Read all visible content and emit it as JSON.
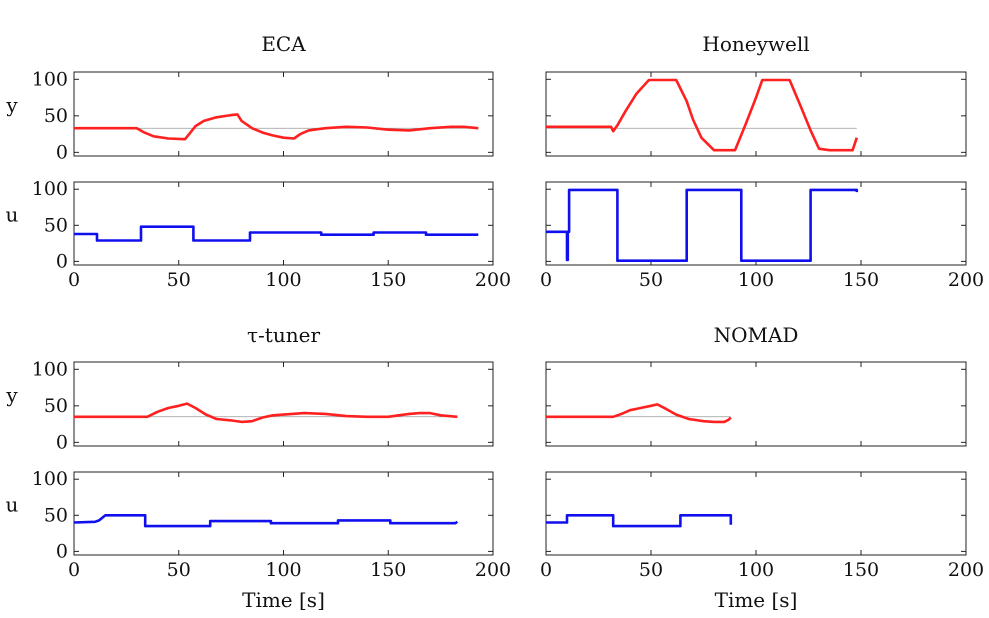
{
  "chart_data": [
    {
      "type": "line",
      "title": "ECA",
      "xlabel": "",
      "xlim": [
        0,
        200
      ],
      "xticks": [
        "0",
        "50",
        "100",
        "150",
        "200"
      ],
      "subplots": [
        {
          "ylabel": "y",
          "ylim": [
            -5,
            110
          ],
          "yticks": [
            "0",
            "50",
            "100"
          ],
          "setpoint": 33,
          "series": [
            {
              "color": "#ff2020",
              "x": [
                0,
                30,
                33,
                38,
                45,
                53,
                55,
                58,
                62,
                68,
                75,
                78,
                80,
                85,
                90,
                95,
                100,
                105,
                108,
                112,
                120,
                130,
                140,
                150,
                160,
                170,
                180,
                186,
                193
              ],
              "y": [
                33,
                33,
                28,
                22,
                19,
                18,
                25,
                36,
                43,
                48,
                51,
                52,
                43,
                33,
                27,
                23,
                20,
                19,
                25,
                30,
                33,
                35,
                34,
                31,
                30,
                33,
                35,
                35,
                33
              ]
            }
          ]
        },
        {
          "ylabel": "u",
          "ylim": [
            -5,
            110
          ],
          "yticks": [
            "0",
            "50",
            "100"
          ],
          "series": [
            {
              "color": "#1010ee",
              "x": [
                0,
                11,
                11,
                32,
                32,
                57,
                57,
                84,
                84,
                118,
                118,
                143,
                143,
                168,
                168,
                193
              ],
              "y": [
                38,
                38,
                29,
                29,
                48,
                48,
                29,
                29,
                40,
                40,
                37,
                37,
                40,
                40,
                37,
                37
              ]
            }
          ]
        }
      ]
    },
    {
      "type": "line",
      "title": "Honeywell",
      "xlabel": "",
      "xlim": [
        0,
        200
      ],
      "xticks": [
        "0",
        "50",
        "100",
        "150",
        "200"
      ],
      "subplots": [
        {
          "ylabel": "",
          "ylim": [
            -5,
            110
          ],
          "yticks": [
            "",
            "",
            ""
          ],
          "setpoint": 33,
          "series": [
            {
              "color": "#ff2020",
              "x": [
                0,
                31,
                32,
                34,
                38,
                43,
                49,
                57,
                62,
                67,
                70,
                74,
                80,
                88,
                90,
                95,
                100,
                103,
                108,
                116,
                121,
                126,
                130,
                135,
                140,
                146,
                148
              ],
              "y": [
                35,
                35,
                29,
                37,
                57,
                80,
                99,
                99,
                99,
                70,
                45,
                20,
                3,
                3,
                3,
                38,
                75,
                99,
                99,
                99,
                65,
                30,
                5,
                3,
                3,
                3,
                20
              ]
            }
          ]
        },
        {
          "ylabel": "",
          "ylim": [
            -5,
            110
          ],
          "yticks": [
            "",
            "",
            ""
          ],
          "series": [
            {
              "color": "#1010ee",
              "x": [
                0,
                10,
                10,
                10.4,
                10.4,
                11,
                11,
                34,
                34,
                67,
                67,
                93,
                93,
                126,
                126,
                148,
                148
              ],
              "y": [
                41,
                41,
                2,
                2,
                41,
                41,
                99,
                99,
                1,
                1,
                99,
                99,
                1,
                1,
                99,
                99,
                96
              ]
            }
          ]
        }
      ]
    },
    {
      "type": "line",
      "title": "τ-tuner",
      "xlabel": "Time [s]",
      "xlim": [
        0,
        200
      ],
      "xticks": [
        "0",
        "50",
        "100",
        "150",
        "200"
      ],
      "subplots": [
        {
          "ylabel": "y",
          "ylim": [
            -5,
            110
          ],
          "yticks": [
            "0",
            "50",
            "100"
          ],
          "setpoint": 35,
          "series": [
            {
              "color": "#ff2020",
              "x": [
                0,
                35,
                40,
                45,
                50,
                54,
                58,
                63,
                68,
                75,
                80,
                85,
                90,
                95,
                100,
                110,
                120,
                130,
                140,
                150,
                155,
                160,
                165,
                170,
                175,
                183
              ],
              "y": [
                35,
                35,
                42,
                47,
                50,
                53,
                47,
                38,
                32,
                30,
                28,
                29,
                34,
                37,
                38,
                40,
                39,
                36,
                35,
                35,
                37,
                39,
                40,
                40,
                37,
                35
              ]
            }
          ]
        },
        {
          "ylabel": "u",
          "ylim": [
            -5,
            110
          ],
          "yticks": [
            "0",
            "50",
            "100"
          ],
          "series": [
            {
              "color": "#1010ee",
              "x": [
                0,
                10,
                12,
                15,
                34,
                34,
                65,
                65,
                94,
                94,
                126,
                126,
                151,
                151,
                182,
                183
              ],
              "y": [
                40,
                41,
                43,
                50,
                50,
                35,
                35,
                42,
                42,
                39,
                39,
                43,
                43,
                39,
                39,
                41
              ]
            }
          ]
        }
      ]
    },
    {
      "type": "line",
      "title": "NOMAD",
      "xlabel": "Time [s]",
      "xlim": [
        0,
        200
      ],
      "xticks": [
        "0",
        "50",
        "100",
        "150",
        "200"
      ],
      "subplots": [
        {
          "ylabel": "",
          "ylim": [
            -5,
            110
          ],
          "yticks": [
            "",
            "",
            ""
          ],
          "setpoint": 35,
          "series": [
            {
              "color": "#ff2020",
              "x": [
                0,
                32,
                36,
                40,
                45,
                50,
                53,
                57,
                62,
                68,
                75,
                80,
                85,
                87,
                88
              ],
              "y": [
                35,
                35,
                39,
                44,
                47,
                50,
                52,
                46,
                38,
                32,
                29,
                28,
                28,
                31,
                34
              ]
            }
          ]
        },
        {
          "ylabel": "",
          "ylim": [
            -5,
            110
          ],
          "yticks": [
            "",
            "",
            ""
          ],
          "series": [
            {
              "color": "#1010ee",
              "x": [
                0,
                10,
                10,
                32,
                32,
                64,
                64,
                88,
                88
              ],
              "y": [
                40,
                40,
                50,
                50,
                35,
                35,
                50,
                50,
                37
              ]
            }
          ]
        }
      ]
    }
  ]
}
